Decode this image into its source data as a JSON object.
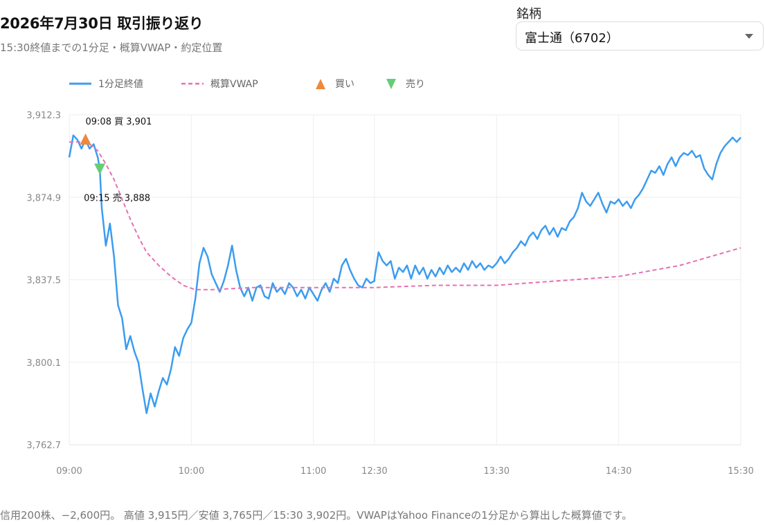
{
  "header": {
    "title": "2026年7月30日 取引振り返り",
    "subtitle": "15:30終値までの1分足・概算VWAP・約定位置"
  },
  "symbol": {
    "label": "銘柄",
    "selected": "富士通（6702）"
  },
  "footnote": "信用200株、−2,600円。 高値 3,915円／安値 3,765円／15:30 3,902円。VWAPはYahoo Financeの1分足から算出した概算値です。",
  "colors": {
    "price": "#3b9cf0",
    "vwap": "#e86fb1",
    "buy": "#f0883c",
    "sell": "#66cc77"
  },
  "chart_data": {
    "type": "line",
    "legend": [
      {
        "label": "1分足終値",
        "kind": "solid-line",
        "color": "#3b9cf0"
      },
      {
        "label": "概算VWAP",
        "kind": "dashed-line",
        "color": "#e86fb1"
      },
      {
        "label": "買い",
        "kind": "up-triangle",
        "color": "#f0883c"
      },
      {
        "label": "売り",
        "kind": "down-triangle",
        "color": "#66cc77"
      }
    ],
    "legend_position": "top-left",
    "y_ticks": [
      "3,912.3",
      "3,874.9",
      "3,837.5",
      "3,800.1",
      "3,762.7"
    ],
    "y_tick_values": [
      3912.3,
      3874.9,
      3837.5,
      3800.1,
      3762.7
    ],
    "ylim": [
      3762.7,
      3912.3
    ],
    "x_ticks": [
      "09:00",
      "10:00",
      "11:00",
      "12:30",
      "13:30",
      "14:30",
      "15:30"
    ],
    "x_breaks": [
      [
        "09:00",
        "11:30"
      ],
      [
        "12:30",
        "15:30"
      ]
    ],
    "grid": true,
    "series": [
      {
        "name": "1分足終値",
        "style": "solid",
        "color": "#3b9cf0",
        "points": [
          [
            "09:00",
            3893
          ],
          [
            "09:02",
            3903
          ],
          [
            "09:04",
            3901
          ],
          [
            "09:06",
            3897
          ],
          [
            "09:08",
            3901
          ],
          [
            "09:10",
            3897
          ],
          [
            "09:12",
            3899
          ],
          [
            "09:14",
            3893
          ],
          [
            "09:15",
            3888
          ],
          [
            "09:16",
            3870
          ],
          [
            "09:18",
            3853
          ],
          [
            "09:20",
            3863
          ],
          [
            "09:22",
            3848
          ],
          [
            "09:24",
            3826
          ],
          [
            "09:26",
            3820
          ],
          [
            "09:28",
            3806
          ],
          [
            "09:30",
            3812
          ],
          [
            "09:32",
            3805
          ],
          [
            "09:34",
            3800
          ],
          [
            "09:36",
            3788
          ],
          [
            "09:38",
            3777
          ],
          [
            "09:40",
            3786
          ],
          [
            "09:42",
            3780
          ],
          [
            "09:44",
            3787
          ],
          [
            "09:46",
            3793
          ],
          [
            "09:48",
            3790
          ],
          [
            "09:50",
            3797
          ],
          [
            "09:52",
            3807
          ],
          [
            "09:54",
            3803
          ],
          [
            "09:56",
            3811
          ],
          [
            "09:58",
            3815
          ],
          [
            "10:00",
            3818
          ],
          [
            "10:02",
            3829
          ],
          [
            "10:04",
            3845
          ],
          [
            "10:06",
            3852
          ],
          [
            "10:08",
            3848
          ],
          [
            "10:10",
            3840
          ],
          [
            "10:12",
            3836
          ],
          [
            "10:14",
            3832
          ],
          [
            "10:16",
            3837
          ],
          [
            "10:18",
            3844
          ],
          [
            "10:20",
            3853
          ],
          [
            "10:22",
            3842
          ],
          [
            "10:24",
            3834
          ],
          [
            "10:26",
            3830
          ],
          [
            "10:28",
            3834
          ],
          [
            "10:30",
            3828
          ],
          [
            "10:32",
            3834
          ],
          [
            "10:34",
            3835
          ],
          [
            "10:36",
            3830
          ],
          [
            "10:38",
            3829
          ],
          [
            "10:40",
            3836
          ],
          [
            "10:42",
            3832
          ],
          [
            "10:44",
            3834
          ],
          [
            "10:46",
            3831
          ],
          [
            "10:48",
            3836
          ],
          [
            "10:50",
            3834
          ],
          [
            "10:52",
            3830
          ],
          [
            "10:54",
            3833
          ],
          [
            "10:56",
            3829
          ],
          [
            "10:58",
            3834
          ],
          [
            "11:00",
            3831
          ],
          [
            "11:02",
            3828
          ],
          [
            "11:04",
            3833
          ],
          [
            "11:06",
            3836
          ],
          [
            "11:08",
            3832
          ],
          [
            "11:10",
            3838
          ],
          [
            "11:12",
            3836
          ],
          [
            "11:14",
            3844
          ],
          [
            "11:16",
            3847
          ],
          [
            "11:18",
            3842
          ],
          [
            "11:20",
            3838
          ],
          [
            "11:22",
            3835
          ],
          [
            "11:24",
            3834
          ],
          [
            "11:26",
            3838
          ],
          [
            "11:28",
            3836
          ],
          [
            "11:30",
            3837
          ],
          [
            "12:30",
            3838
          ],
          [
            "12:32",
            3850
          ],
          [
            "12:34",
            3846
          ],
          [
            "12:36",
            3844
          ],
          [
            "12:38",
            3846
          ],
          [
            "12:40",
            3838
          ],
          [
            "12:42",
            3843
          ],
          [
            "12:44",
            3841
          ],
          [
            "12:46",
            3844
          ],
          [
            "12:48",
            3838
          ],
          [
            "12:50",
            3844
          ],
          [
            "12:52",
            3840
          ],
          [
            "12:54",
            3843
          ],
          [
            "12:56",
            3838
          ],
          [
            "12:58",
            3842
          ],
          [
            "13:00",
            3839
          ],
          [
            "13:02",
            3843
          ],
          [
            "13:04",
            3840
          ],
          [
            "13:06",
            3844
          ],
          [
            "13:08",
            3841
          ],
          [
            "13:10",
            3843
          ],
          [
            "13:12",
            3841
          ],
          [
            "13:14",
            3845
          ],
          [
            "13:16",
            3842
          ],
          [
            "13:18",
            3846
          ],
          [
            "13:20",
            3843
          ],
          [
            "13:22",
            3845
          ],
          [
            "13:24",
            3842
          ],
          [
            "13:26",
            3844
          ],
          [
            "13:28",
            3843
          ],
          [
            "13:30",
            3845
          ],
          [
            "13:32",
            3848
          ],
          [
            "13:34",
            3845
          ],
          [
            "13:36",
            3847
          ],
          [
            "13:38",
            3850
          ],
          [
            "13:40",
            3852
          ],
          [
            "13:42",
            3855
          ],
          [
            "13:44",
            3853
          ],
          [
            "13:46",
            3857
          ],
          [
            "13:48",
            3859
          ],
          [
            "13:50",
            3856
          ],
          [
            "13:52",
            3860
          ],
          [
            "13:54",
            3862
          ],
          [
            "13:56",
            3858
          ],
          [
            "13:58",
            3861
          ],
          [
            "14:00",
            3857
          ],
          [
            "14:02",
            3861
          ],
          [
            "14:04",
            3860
          ],
          [
            "14:06",
            3864
          ],
          [
            "14:08",
            3866
          ],
          [
            "14:10",
            3870
          ],
          [
            "14:12",
            3877
          ],
          [
            "14:14",
            3873
          ],
          [
            "14:16",
            3871
          ],
          [
            "14:18",
            3874
          ],
          [
            "14:20",
            3877
          ],
          [
            "14:22",
            3872
          ],
          [
            "14:24",
            3868
          ],
          [
            "14:26",
            3873
          ],
          [
            "14:28",
            3872
          ],
          [
            "14:30",
            3874
          ],
          [
            "14:32",
            3871
          ],
          [
            "14:34",
            3873
          ],
          [
            "14:36",
            3870
          ],
          [
            "14:38",
            3874
          ],
          [
            "14:40",
            3876
          ],
          [
            "14:42",
            3879
          ],
          [
            "14:44",
            3883
          ],
          [
            "14:46",
            3887
          ],
          [
            "14:48",
            3886
          ],
          [
            "14:50",
            3889
          ],
          [
            "14:52",
            3885
          ],
          [
            "14:54",
            3890
          ],
          [
            "14:56",
            3893
          ],
          [
            "14:58",
            3889
          ],
          [
            "15:00",
            3893
          ],
          [
            "15:02",
            3895
          ],
          [
            "15:04",
            3894
          ],
          [
            "15:06",
            3896
          ],
          [
            "15:08",
            3893
          ],
          [
            "15:10",
            3894
          ],
          [
            "15:12",
            3888
          ],
          [
            "15:14",
            3885
          ],
          [
            "15:16",
            3883
          ],
          [
            "15:18",
            3890
          ],
          [
            "15:20",
            3895
          ],
          [
            "15:22",
            3898
          ],
          [
            "15:24",
            3900
          ],
          [
            "15:26",
            3902
          ],
          [
            "15:28",
            3900
          ],
          [
            "15:30",
            3902
          ]
        ]
      },
      {
        "name": "概算VWAP",
        "style": "dashed",
        "color": "#e86fb1",
        "points": [
          [
            "09:00",
            3900
          ],
          [
            "09:06",
            3900
          ],
          [
            "09:10",
            3899
          ],
          [
            "09:14",
            3896
          ],
          [
            "09:18",
            3890
          ],
          [
            "09:22",
            3883
          ],
          [
            "09:26",
            3874
          ],
          [
            "09:30",
            3865
          ],
          [
            "09:34",
            3857
          ],
          [
            "09:38",
            3850
          ],
          [
            "09:44",
            3844
          ],
          [
            "09:50",
            3839
          ],
          [
            "09:56",
            3835
          ],
          [
            "10:02",
            3833
          ],
          [
            "10:10",
            3833
          ],
          [
            "10:30",
            3834
          ],
          [
            "11:00",
            3834
          ],
          [
            "11:30",
            3834
          ],
          [
            "12:30",
            3834
          ],
          [
            "13:00",
            3835
          ],
          [
            "13:30",
            3835
          ],
          [
            "14:00",
            3837
          ],
          [
            "14:30",
            3839
          ],
          [
            "15:00",
            3844
          ],
          [
            "15:30",
            3852
          ]
        ]
      }
    ],
    "markers": [
      {
        "kind": "buy",
        "time": "09:08",
        "price": 3901,
        "label": "09:08 買 3,901"
      },
      {
        "kind": "sell",
        "time": "09:15",
        "price": 3888,
        "label": "09:15 売 3,888"
      }
    ]
  }
}
